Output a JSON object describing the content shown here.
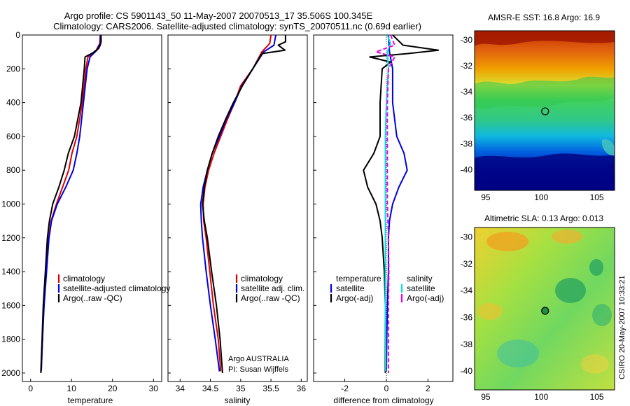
{
  "header": {
    "title_line1": "Argo profile: CS 5901143_50 11-May-2007 20070513_17 35.506S 100.345E",
    "title_line2": "Climatology: CARS2006. Satellite-adjusted climatology: synTS_20070511.nc (0.69d earlier)"
  },
  "colors": {
    "climatology": "#dd0000",
    "satellite": "#0000dd",
    "argo": "#000000",
    "salinity_satellite": "#00e0e0",
    "salinity_argo": "#ee00ee"
  },
  "depth_axis": {
    "ylim": [
      0,
      2050
    ],
    "ticks": [
      0,
      200,
      400,
      600,
      800,
      1000,
      1200,
      1400,
      1600,
      1800,
      2000
    ]
  },
  "chart_data": [
    {
      "type": "line",
      "id": "temperature",
      "xlabel": "temperature",
      "xlim": [
        -2,
        32
      ],
      "xticks": [
        0,
        10,
        20,
        30
      ],
      "legend": [
        "climatology",
        "satellite-adjusted climatology",
        "Argo(..raw -QC)"
      ],
      "series": [
        {
          "name": "climatology",
          "color": "#dd0000",
          "points": [
            [
              17,
              0
            ],
            [
              16.9,
              50
            ],
            [
              16,
              90
            ],
            [
              14,
              130
            ],
            [
              13.5,
              200
            ],
            [
              12.6,
              400
            ],
            [
              11.3,
              600
            ],
            [
              10.1,
              700
            ],
            [
              9.3,
              800
            ],
            [
              7.8,
              900
            ],
            [
              6.3,
              1000
            ],
            [
              5,
              1100
            ],
            [
              4.4,
              1200
            ],
            [
              3.8,
              1400
            ],
            [
              3.2,
              1600
            ],
            [
              2.9,
              1800
            ],
            [
              2.6,
              1990
            ]
          ]
        },
        {
          "name": "satellite-adjusted climatology",
          "color": "#0000dd",
          "points": [
            [
              17.1,
              0
            ],
            [
              17,
              50
            ],
            [
              16.2,
              90
            ],
            [
              14.5,
              130
            ],
            [
              13.8,
              200
            ],
            [
              12.9,
              400
            ],
            [
              12,
              600
            ],
            [
              11.3,
              700
            ],
            [
              10.4,
              800
            ],
            [
              8.6,
              900
            ],
            [
              6.5,
              1000
            ],
            [
              5.1,
              1100
            ],
            [
              4.5,
              1200
            ],
            [
              3.9,
              1400
            ],
            [
              3.3,
              1600
            ],
            [
              2.9,
              1800
            ],
            [
              2.6,
              1990
            ]
          ]
        },
        {
          "name": "Argo(..raw -QC)",
          "color": "#000000",
          "points": [
            [
              17.2,
              0
            ],
            [
              17.2,
              40
            ],
            [
              17,
              60
            ],
            [
              16.6,
              80
            ],
            [
              15.2,
              105
            ],
            [
              13.3,
              130
            ],
            [
              13.1,
              200
            ],
            [
              12.3,
              400
            ],
            [
              10.7,
              600
            ],
            [
              9.2,
              700
            ],
            [
              8.2,
              800
            ],
            [
              6.9,
              900
            ],
            [
              5.4,
              1000
            ],
            [
              4.6,
              1100
            ],
            [
              4.1,
              1200
            ],
            [
              3.6,
              1400
            ],
            [
              3.1,
              1600
            ],
            [
              2.8,
              1800
            ],
            [
              2.5,
              2000
            ]
          ]
        }
      ]
    },
    {
      "type": "line",
      "id": "salinity",
      "xlabel": "salinity",
      "xlim": [
        33.8,
        36.1
      ],
      "xticks": [
        34,
        34.5,
        35,
        35.5,
        36
      ],
      "legend": [
        "climatology",
        "satellite adj. clim.",
        "Argo(..raw -QC)"
      ],
      "credit": [
        "Argo AUSTRALIA",
        "PI: Susan Wijffels"
      ],
      "series": [
        {
          "name": "climatology",
          "color": "#dd0000",
          "points": [
            [
              35.5,
              0
            ],
            [
              35.48,
              50
            ],
            [
              35.35,
              100
            ],
            [
              35.2,
              200
            ],
            [
              35.0,
              300
            ],
            [
              34.9,
              400
            ],
            [
              34.78,
              500
            ],
            [
              34.67,
              600
            ],
            [
              34.56,
              700
            ],
            [
              34.47,
              800
            ],
            [
              34.41,
              900
            ],
            [
              34.38,
              1000
            ],
            [
              34.39,
              1100
            ],
            [
              34.43,
              1200
            ],
            [
              34.49,
              1400
            ],
            [
              34.55,
              1600
            ],
            [
              34.63,
              1800
            ],
            [
              34.67,
              1990
            ]
          ]
        },
        {
          "name": "satellite adj. clim.",
          "color": "#0000dd",
          "points": [
            [
              35.58,
              0
            ],
            [
              35.55,
              60
            ],
            [
              35.38,
              100
            ],
            [
              35.2,
              200
            ],
            [
              35.02,
              300
            ],
            [
              34.9,
              400
            ],
            [
              34.76,
              500
            ],
            [
              34.65,
              600
            ],
            [
              34.53,
              700
            ],
            [
              34.45,
              800
            ],
            [
              34.38,
              900
            ],
            [
              34.34,
              1000
            ],
            [
              34.35,
              1100
            ],
            [
              34.37,
              1200
            ],
            [
              34.43,
              1400
            ],
            [
              34.5,
              1600
            ],
            [
              34.58,
              1800
            ],
            [
              34.65,
              1990
            ]
          ]
        },
        {
          "name": "Argo(..raw -QC)",
          "color": "#000000",
          "points": [
            [
              35.74,
              0
            ],
            [
              35.74,
              40
            ],
            [
              35.62,
              60
            ],
            [
              35.73,
              90
            ],
            [
              35.35,
              110
            ],
            [
              35.2,
              200
            ],
            [
              35.03,
              300
            ],
            [
              34.88,
              400
            ],
            [
              34.75,
              500
            ],
            [
              34.63,
              600
            ],
            [
              34.53,
              700
            ],
            [
              34.45,
              800
            ],
            [
              34.4,
              900
            ],
            [
              34.37,
              1000
            ],
            [
              34.4,
              1100
            ],
            [
              34.45,
              1200
            ],
            [
              34.52,
              1400
            ],
            [
              34.6,
              1600
            ],
            [
              34.66,
              1800
            ],
            [
              34.7,
              2000
            ]
          ]
        }
      ]
    },
    {
      "type": "line",
      "id": "difference",
      "xlabel": "difference from climatology",
      "xlim": [
        -3.5,
        3.2
      ],
      "xticks": [
        -2,
        0,
        2
      ],
      "legend_left_title": "temperature",
      "legend_right_title": "salinity",
      "legend": [
        "satellite",
        "Argo(-adj)",
        "satellite",
        "Argo(-adj)"
      ],
      "series": [
        {
          "name": "temperature satellite",
          "color": "#0000dd",
          "points": [
            [
              0.1,
              0
            ],
            [
              0.15,
              100
            ],
            [
              0.3,
              200
            ],
            [
              0.3,
              400
            ],
            [
              0.5,
              600
            ],
            [
              0.85,
              700
            ],
            [
              1.0,
              800
            ],
            [
              0.6,
              900
            ],
            [
              0.3,
              1000
            ],
            [
              0.15,
              1100
            ],
            [
              0.1,
              1200
            ],
            [
              0.1,
              1400
            ],
            [
              0.05,
              1600
            ],
            [
              0.02,
              1800
            ],
            [
              0,
              1990
            ]
          ]
        },
        {
          "name": "temperature Argo(-adj)",
          "color": "#000000",
          "points": [
            [
              0.3,
              0
            ],
            [
              0.8,
              60
            ],
            [
              2.5,
              90
            ],
            [
              1.0,
              110
            ],
            [
              -0.8,
              130
            ],
            [
              0.2,
              160
            ],
            [
              -0.2,
              200
            ],
            [
              -0.3,
              400
            ],
            [
              -0.3,
              600
            ],
            [
              -0.6,
              700
            ],
            [
              -1.1,
              800
            ],
            [
              -0.9,
              900
            ],
            [
              -0.5,
              1000
            ],
            [
              -0.3,
              1100
            ],
            [
              -0.2,
              1200
            ],
            [
              -0.1,
              1400
            ],
            [
              -0.05,
              1600
            ],
            [
              -0.05,
              1800
            ],
            [
              -0.05,
              2000
            ]
          ]
        },
        {
          "name": "salinity satellite",
          "color": "#00e0e0",
          "points": [
            [
              0.05,
              0
            ],
            [
              0.2,
              50
            ],
            [
              0.05,
              100
            ],
            [
              0.1,
              200
            ],
            [
              0,
              400
            ],
            [
              -0.05,
              600
            ],
            [
              -0.05,
              800
            ],
            [
              -0.05,
              1000
            ],
            [
              -0.05,
              1200
            ],
            [
              -0.05,
              1400
            ],
            [
              -0.05,
              1600
            ],
            [
              -0.04,
              1800
            ],
            [
              -0.03,
              1990
            ]
          ]
        },
        {
          "name": "salinity Argo(-adj)",
          "color": "#ee00ee",
          "points": [
            [
              0.2,
              0
            ],
            [
              0.4,
              60
            ],
            [
              -0.5,
              100
            ],
            [
              0.4,
              130
            ],
            [
              0.1,
              200
            ],
            [
              0.05,
              400
            ],
            [
              0.05,
              600
            ],
            [
              0.05,
              800
            ],
            [
              0.05,
              1000
            ],
            [
              0.1,
              1200
            ],
            [
              0.12,
              1400
            ],
            [
              0.1,
              1600
            ],
            [
              0.1,
              1800
            ],
            [
              0.1,
              2000
            ]
          ]
        }
      ]
    },
    {
      "type": "heatmap",
      "id": "sst-map",
      "title": "AMSR-E SST: 16.8  Argo: 16.9",
      "xlim": [
        94,
        106.6
      ],
      "ylim": [
        -41.6,
        -29.3
      ],
      "xticks": [
        95,
        100,
        105
      ],
      "yticks": [
        -30,
        -32,
        -34,
        -36,
        -38,
        -40
      ],
      "marker": {
        "lon": 100.345,
        "lat": -35.506
      }
    },
    {
      "type": "heatmap",
      "id": "sla-map",
      "title": "Altimetric SLA: 0.13  Argo: 0.013",
      "xlim": [
        94,
        106.6
      ],
      "ylim": [
        -41.4,
        -29.3
      ],
      "xticks": [
        95,
        100,
        105
      ],
      "yticks": [
        -30,
        -32,
        -34,
        -36,
        -38,
        -40
      ],
      "marker": {
        "lon": 100.345,
        "lat": -35.506
      }
    }
  ],
  "stamp": "CSIRO 20-May-2007 10:33:21"
}
